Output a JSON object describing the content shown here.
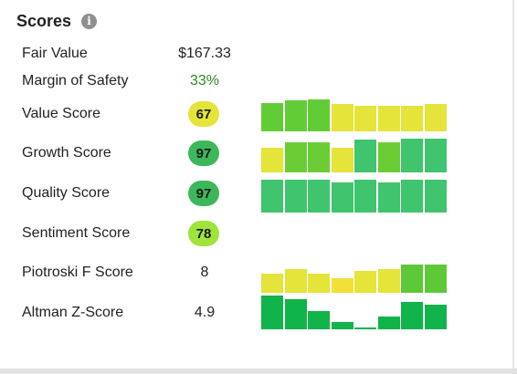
{
  "header": {
    "title": "Scores",
    "info_icon": "info-icon"
  },
  "colors": {
    "badge_yellow": "#e4e43a",
    "badge_dark_green": "#3cb85a",
    "badge_light_green": "#9fe33b",
    "value_green": "#2e8b22"
  },
  "rows": [
    {
      "label": "Fair Value",
      "value": "$167.33"
    },
    {
      "label": "Margin of Safety",
      "value": "33%"
    },
    {
      "label": "Value Score",
      "badge": "67"
    },
    {
      "label": "Growth Score",
      "badge": "97"
    },
    {
      "label": "Quality Score",
      "badge": "97"
    },
    {
      "label": "Sentiment Score",
      "badge": "78"
    },
    {
      "label": "Piotroski F Score",
      "value": "8"
    },
    {
      "label": "Altman Z-Score",
      "value": "4.9"
    }
  ],
  "chart_data": [
    {
      "type": "bar",
      "name": "value-score-history",
      "values": [
        0.82,
        0.9,
        0.92,
        0.78,
        0.74,
        0.74,
        0.74,
        0.78
      ],
      "colors": [
        "#62cc36",
        "#62cc36",
        "#62cc36",
        "#e4e43a",
        "#e4e43a",
        "#e4e43a",
        "#e4e43a",
        "#e4e43a"
      ]
    },
    {
      "type": "bar",
      "name": "growth-score-history",
      "values": [
        0.7,
        0.86,
        0.86,
        0.7,
        0.94,
        0.86,
        0.98,
        0.98
      ],
      "colors": [
        "#e4e43a",
        "#6acd36",
        "#6acd36",
        "#e4e43a",
        "#40c46e",
        "#6acd36",
        "#40c46e",
        "#40c46e"
      ]
    },
    {
      "type": "bar",
      "name": "quality-score-history",
      "values": [
        0.94,
        0.94,
        0.94,
        0.88,
        0.94,
        0.88,
        0.94,
        0.94
      ],
      "colors": [
        "#40c46e",
        "#40c46e",
        "#40c46e",
        "#40c46e",
        "#40c46e",
        "#40c46e",
        "#40c46e",
        "#40c46e"
      ]
    },
    {
      "type": "bar",
      "name": "piotroski-history",
      "values": [
        0.55,
        0.68,
        0.55,
        0.42,
        0.64,
        0.68,
        0.82,
        0.82
      ],
      "colors": [
        "#e4e43a",
        "#e4e43a",
        "#e4e43a",
        "#f2e037",
        "#e4e43a",
        "#e4e43a",
        "#5ec938",
        "#5ec938"
      ]
    },
    {
      "type": "bar",
      "name": "altman-history",
      "values": [
        0.98,
        0.88,
        0.52,
        0.2,
        0.04,
        0.38,
        0.78,
        0.72
      ],
      "colors": [
        "#10b44a",
        "#10b44a",
        "#10b44a",
        "#10b44a",
        "#10b44a",
        "#10b44a",
        "#10b44a",
        "#10b44a"
      ]
    }
  ]
}
